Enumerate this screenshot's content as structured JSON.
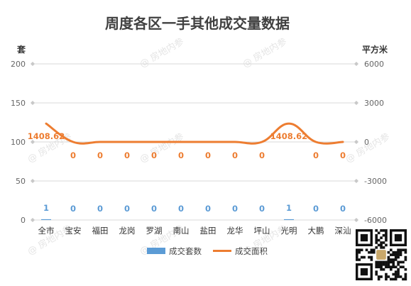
{
  "chart_data": {
    "type": "bar",
    "title": "周度各区一手其他成交量数据",
    "categories": [
      "全市",
      "宝安",
      "福田",
      "龙岗",
      "罗湖",
      "南山",
      "盐田",
      "龙华",
      "坪山",
      "光明",
      "大鹏",
      "深汕"
    ],
    "series": [
      {
        "name": "成交套数",
        "type": "bar",
        "axis": "left",
        "color": "#5b9bd5",
        "values": [
          1,
          0,
          0,
          0,
          0,
          0,
          0,
          0,
          0,
          1,
          0,
          0
        ],
        "labels": [
          "1",
          "0",
          "0",
          "0",
          "0",
          "0",
          "0",
          "0",
          "0",
          "1",
          "0",
          "0"
        ]
      },
      {
        "name": "成交面积",
        "type": "line",
        "axis": "right",
        "color": "#ed7d31",
        "smooth": true,
        "values": [
          1408.62,
          0,
          0,
          0,
          0,
          0,
          0,
          0,
          0,
          1408.62,
          0,
          0
        ],
        "labels": [
          "1408.62",
          "0",
          "0",
          "0",
          "0",
          "0",
          "0",
          "0",
          "0",
          "1408.62",
          "0",
          "0"
        ]
      }
    ],
    "y_left": {
      "label": "套",
      "ylim": [
        0,
        200
      ],
      "ticks": [
        "0",
        "50",
        "100",
        "150",
        "200"
      ]
    },
    "y_right": {
      "label": "平方米",
      "ylim": [
        -6000,
        6000
      ],
      "ticks": [
        "-6000",
        "-3000",
        "0",
        "3000",
        "6000"
      ]
    },
    "grid": true,
    "legend": "bottom"
  },
  "watermark": {
    "text": "房地内参"
  },
  "qr": {
    "label": "QR code"
  }
}
